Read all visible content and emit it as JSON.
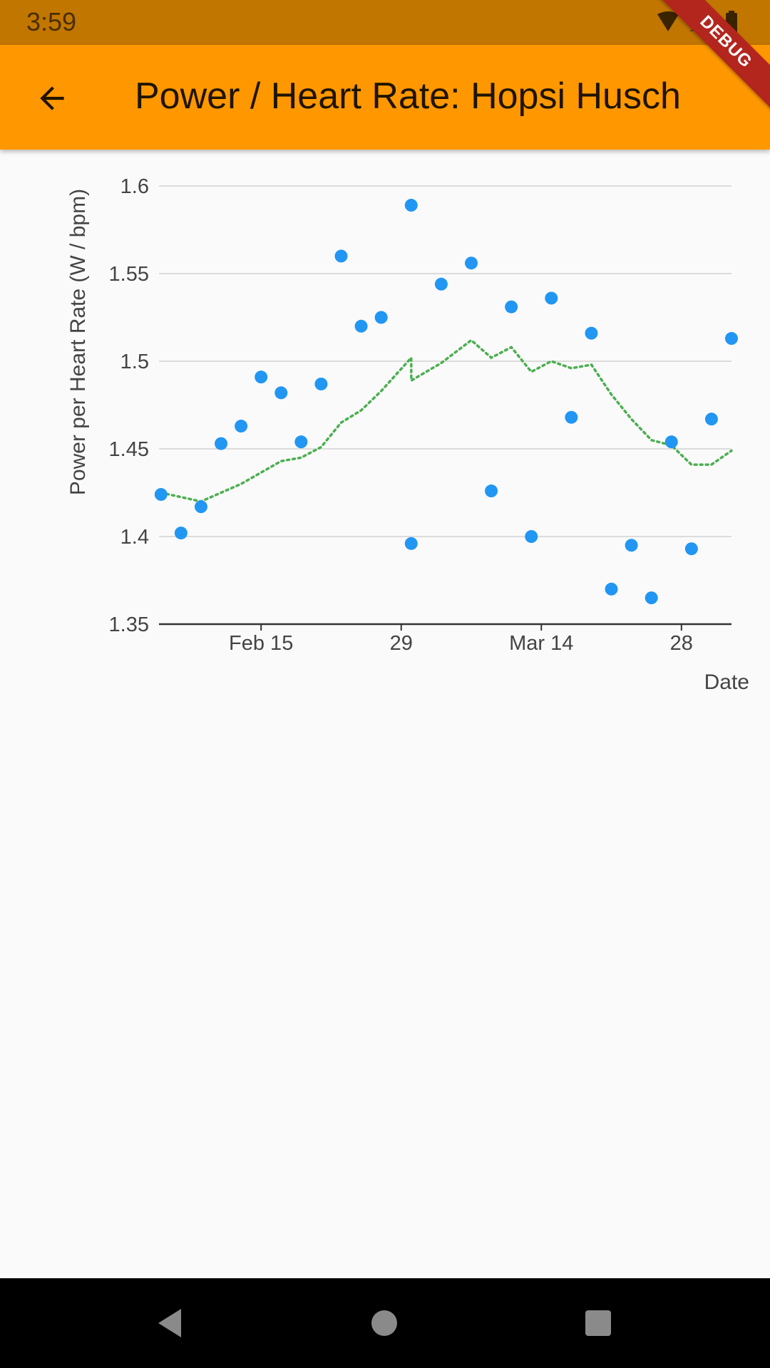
{
  "status_bar": {
    "time": "3:59",
    "icons": [
      "wifi-icon",
      "signal-icon",
      "battery-icon"
    ]
  },
  "app_bar": {
    "title": "Power / Heart Rate: Hopsi Husch",
    "back_icon": "arrow-back-icon",
    "debug_label": "DEBUG"
  },
  "colors": {
    "status_bar": "#c17600",
    "app_bar": "#ff9800",
    "points": "#2196f3",
    "trend": "#4caf50",
    "nav_bar": "#000000"
  },
  "chart_data": {
    "type": "scatter",
    "xlabel": "Date",
    "ylabel": "Power per Heart Rate (W / bpm)",
    "ylim": [
      1.35,
      1.6
    ],
    "yticks": [
      "1.35",
      "1.4",
      "1.45",
      "1.5",
      "1.55",
      "1.6"
    ],
    "xlim": [
      "2020-02-05",
      "2020-03-31"
    ],
    "xticks": [
      {
        "date": "2020-02-15",
        "label": "Feb 15"
      },
      {
        "date": "2020-02-29",
        "label": "29"
      },
      {
        "date": "2020-03-14",
        "label": "Mar 14"
      },
      {
        "date": "2020-03-28",
        "label": "28"
      }
    ],
    "grid": true,
    "series": [
      {
        "kind": "points",
        "points": [
          {
            "x": "2020-02-05",
            "y": 1.424
          },
          {
            "x": "2020-02-07",
            "y": 1.402
          },
          {
            "x": "2020-02-09",
            "y": 1.417
          },
          {
            "x": "2020-02-11",
            "y": 1.453
          },
          {
            "x": "2020-02-13",
            "y": 1.463
          },
          {
            "x": "2020-02-15",
            "y": 1.491
          },
          {
            "x": "2020-02-17",
            "y": 1.482
          },
          {
            "x": "2020-02-19",
            "y": 1.454
          },
          {
            "x": "2020-02-21",
            "y": 1.487
          },
          {
            "x": "2020-02-23",
            "y": 1.56
          },
          {
            "x": "2020-02-25",
            "y": 1.52
          },
          {
            "x": "2020-02-27",
            "y": 1.525
          },
          {
            "x": "2020-03-01",
            "y": 1.589
          },
          {
            "x": "2020-03-01",
            "y": 1.396
          },
          {
            "x": "2020-03-04",
            "y": 1.544
          },
          {
            "x": "2020-03-07",
            "y": 1.556
          },
          {
            "x": "2020-03-09",
            "y": 1.426
          },
          {
            "x": "2020-03-11",
            "y": 1.531
          },
          {
            "x": "2020-03-13",
            "y": 1.4
          },
          {
            "x": "2020-03-15",
            "y": 1.536
          },
          {
            "x": "2020-03-17",
            "y": 1.468
          },
          {
            "x": "2020-03-19",
            "y": 1.516
          },
          {
            "x": "2020-03-21",
            "y": 1.37
          },
          {
            "x": "2020-03-23",
            "y": 1.395
          },
          {
            "x": "2020-03-25",
            "y": 1.365
          },
          {
            "x": "2020-03-27",
            "y": 1.454
          },
          {
            "x": "2020-03-29",
            "y": 1.393
          },
          {
            "x": "2020-03-31",
            "y": 1.467
          },
          {
            "x": "2020-04-02",
            "y": 1.513
          }
        ]
      },
      {
        "kind": "trend-line",
        "points": [
          {
            "x": "2020-02-05",
            "y": 1.425
          },
          {
            "x": "2020-02-09",
            "y": 1.42
          },
          {
            "x": "2020-02-13",
            "y": 1.43
          },
          {
            "x": "2020-02-17",
            "y": 1.443
          },
          {
            "x": "2020-02-19",
            "y": 1.445
          },
          {
            "x": "2020-02-21",
            "y": 1.451
          },
          {
            "x": "2020-02-23",
            "y": 1.465
          },
          {
            "x": "2020-02-25",
            "y": 1.472
          },
          {
            "x": "2020-02-27",
            "y": 1.483
          },
          {
            "x": "2020-03-01",
            "y": 1.502
          },
          {
            "x": "2020-03-01",
            "y": 1.489
          },
          {
            "x": "2020-03-04",
            "y": 1.499
          },
          {
            "x": "2020-03-07",
            "y": 1.512
          },
          {
            "x": "2020-03-09",
            "y": 1.502
          },
          {
            "x": "2020-03-11",
            "y": 1.508
          },
          {
            "x": "2020-03-13",
            "y": 1.494
          },
          {
            "x": "2020-03-15",
            "y": 1.5
          },
          {
            "x": "2020-03-17",
            "y": 1.496
          },
          {
            "x": "2020-03-19",
            "y": 1.498
          },
          {
            "x": "2020-03-21",
            "y": 1.481
          },
          {
            "x": "2020-03-23",
            "y": 1.467
          },
          {
            "x": "2020-03-25",
            "y": 1.455
          },
          {
            "x": "2020-03-27",
            "y": 1.452
          },
          {
            "x": "2020-03-29",
            "y": 1.441
          },
          {
            "x": "2020-03-31",
            "y": 1.441
          },
          {
            "x": "2020-04-02",
            "y": 1.449
          }
        ]
      }
    ]
  },
  "nav_bar": {
    "buttons": [
      "nav-back-icon",
      "nav-home-icon",
      "nav-recents-icon"
    ]
  }
}
